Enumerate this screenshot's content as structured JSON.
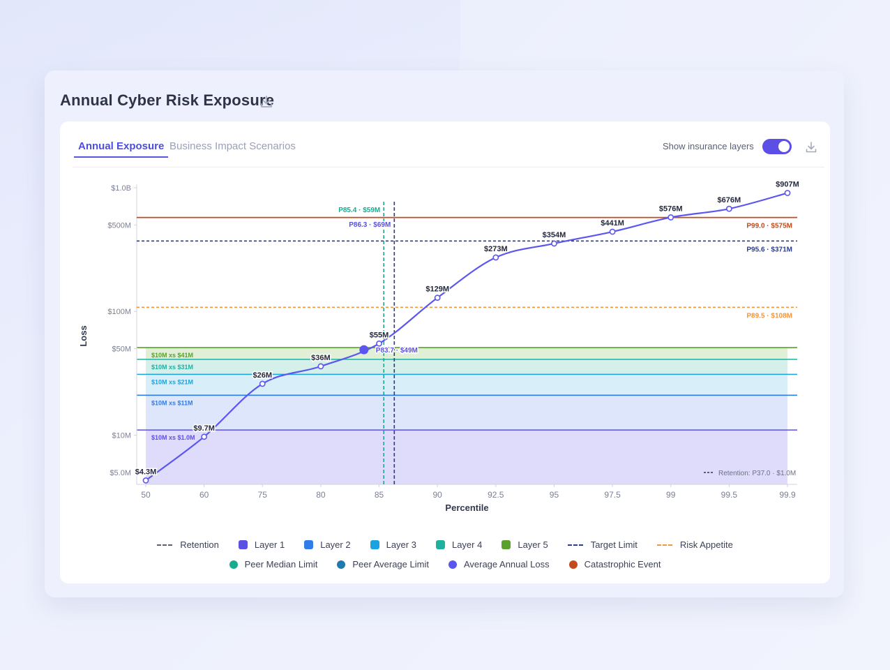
{
  "title": "Annual Cyber Risk Exposure",
  "tabs": [
    {
      "label": "Annual Exposure",
      "active": true
    },
    {
      "label": "Business Impact Scenarios",
      "active": false
    }
  ],
  "toggle": {
    "label": "Show insurance layers",
    "on": true
  },
  "colors": {
    "accent": "#5b4fe6",
    "retention": "#5a5f73",
    "layer1": "#5b4fe6",
    "layer2": "#2f7de8",
    "layer3": "#1aa3e0",
    "layer4": "#1fb0a0",
    "layer5": "#5aa02c",
    "target": "#2c3c8c",
    "appetite": "#f2963c",
    "peer_median": "#19ab8f",
    "peer_average": "#1f7ab0",
    "avg_annual_loss": "#5b56f0",
    "catastrophic": "#c24a1c"
  },
  "legend": [
    {
      "label": "Retention",
      "swatch": "dash",
      "color": "#5a5f73"
    },
    {
      "label": "Layer 1",
      "swatch": "square",
      "color": "#5b4fe6"
    },
    {
      "label": "Layer 2",
      "swatch": "square",
      "color": "#2f7de8"
    },
    {
      "label": "Layer 3",
      "swatch": "square",
      "color": "#1aa3e0"
    },
    {
      "label": "Layer 4",
      "swatch": "square",
      "color": "#1fb0a0"
    },
    {
      "label": "Layer 5",
      "swatch": "square",
      "color": "#5aa02c"
    },
    {
      "label": "Target Limit",
      "swatch": "dash",
      "color": "#2c3c8c"
    },
    {
      "label": "Risk Appetite",
      "swatch": "dash",
      "color": "#f2963c"
    },
    {
      "label": "Peer Median Limit",
      "swatch": "circle",
      "color": "#19ab8f"
    },
    {
      "label": "Peer Average Limit",
      "swatch": "circle",
      "color": "#1f7ab0"
    },
    {
      "label": "Average Annual Loss",
      "swatch": "circle",
      "color": "#5b56f0"
    },
    {
      "label": "Catastrophic Event",
      "swatch": "circle",
      "color": "#c24a1c"
    }
  ],
  "chart_data": {
    "type": "line",
    "xlabel": "Percentile",
    "ylabel": "Loss",
    "y_scale": "log",
    "ylim": [
      4000000,
      1000000000
    ],
    "grid": false,
    "x_categories": [
      "50",
      "60",
      "75",
      "80",
      "85",
      "90",
      "92.5",
      "95",
      "97.5",
      "99",
      "99.5",
      "99.9"
    ],
    "y_ticks": [
      {
        "value": 5000000,
        "label": "$5.0M"
      },
      {
        "value": 10000000,
        "label": "$10M"
      },
      {
        "value": 50000000,
        "label": "$50M"
      },
      {
        "value": 100000000,
        "label": "$100M"
      },
      {
        "value": 500000000,
        "label": "$500M"
      },
      {
        "value": 1000000000,
        "label": "$1.0B"
      }
    ],
    "series": [
      {
        "values": [
          4300000,
          9700000,
          26000000,
          36000000,
          55000000,
          129000000,
          273000000,
          354000000,
          441000000,
          576000000,
          676000000,
          907000000
        ],
        "labels": [
          "$4.3M",
          "$9.7M",
          "$26M",
          "$36M",
          "$55M",
          "$129M",
          "$273M",
          "$354M",
          "$441M",
          "$576M",
          "$676M",
          "$907M"
        ]
      }
    ],
    "layers": [
      {
        "label": "$10M xs $1.0M",
        "top": 11000000
      },
      {
        "label": "$10M xs $11M",
        "top": 21000000
      },
      {
        "label": "$10M xs $21M",
        "top": 31000000
      },
      {
        "label": "$10M xs $31M",
        "top": 41000000
      },
      {
        "label": "$10M xs $41M",
        "top": 51000000
      }
    ],
    "reference_lines": [
      {
        "name": "Catastrophic Event",
        "value": 575000000,
        "label": "P99.0 · $575M",
        "style": "solid"
      },
      {
        "name": "Target Limit",
        "value": 371000000,
        "label": "P95.6 · $371M",
        "style": "dashed"
      },
      {
        "name": "Risk Appetite",
        "value": 108000000,
        "label": "P89.5 · $108M",
        "style": "dashed"
      }
    ],
    "vertical_lines": [
      {
        "name": "Peer Median Limit",
        "percentile": 85.4,
        "label": "P85.4 · $59M"
      },
      {
        "name": "Peer Average Limit",
        "percentile": 86.3,
        "label": "P86.3 · $69M"
      }
    ],
    "average_annual_loss": {
      "percentile": 83.7,
      "value": 49000000,
      "label": "P83.7 · $49M"
    },
    "retention_note": "Retention: P37.0 · $1.0M"
  }
}
